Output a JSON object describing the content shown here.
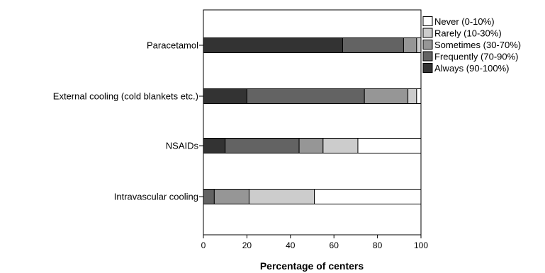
{
  "chart_data": {
    "type": "bar",
    "orientation": "horizontal",
    "stacked": true,
    "title": "",
    "xlabel": "Percentage of centers",
    "ylabel": "",
    "xlim": [
      0,
      100
    ],
    "xticks": [
      "0",
      "20",
      "40",
      "60",
      "80",
      "100"
    ],
    "grid": false,
    "legend_position": "right",
    "categories": [
      "Paracetamol",
      "External cooling (cold blankets etc.)",
      "NSAIDs",
      "Intravascular cooling"
    ],
    "series": [
      {
        "name": "Always (90-100%)",
        "color": "#333333",
        "values": [
          64,
          20,
          10,
          0
        ]
      },
      {
        "name": "Frequently (70-90%)",
        "color": "#636363",
        "values": [
          28,
          54,
          34,
          5
        ]
      },
      {
        "name": "Sometimes (30-70%)",
        "color": "#969696",
        "values": [
          6,
          20,
          11,
          16
        ]
      },
      {
        "name": "Rarely (10-30%)",
        "color": "#cccccc",
        "values": [
          2,
          4,
          16,
          30
        ]
      },
      {
        "name": "Never (0-10%)",
        "color": "#ffffff",
        "values": [
          0,
          2,
          29,
          49
        ]
      }
    ],
    "legend_order": [
      4,
      3,
      2,
      1,
      0
    ]
  }
}
